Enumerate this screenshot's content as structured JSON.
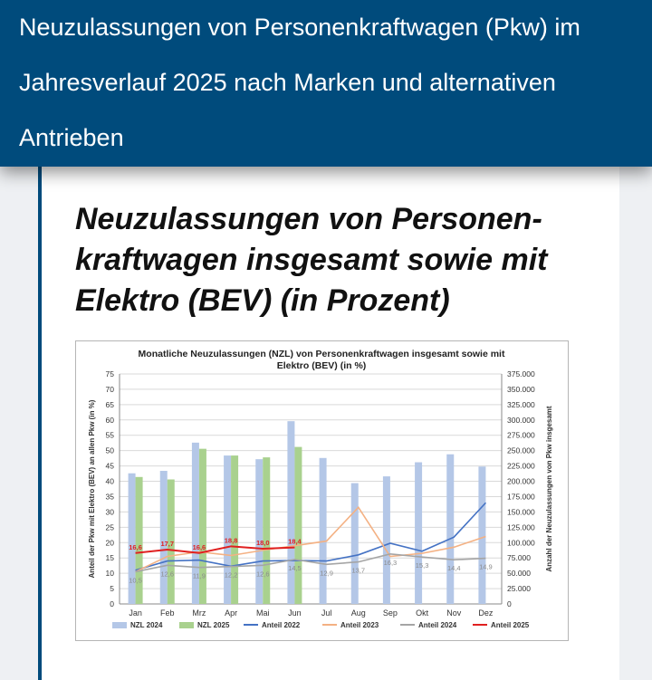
{
  "header": {
    "title": "Neuzulassungen von Personenkraftwagen (Pkw) im Jahresverlauf 2025 nach Marken und alternativen Antrieben"
  },
  "section": {
    "title": "Neuzulassungen von Personen-kraftwagen insgesamt sowie mit Elektro (BEV) (in Prozent)"
  },
  "chart_data": {
    "type": "bar",
    "title": "Monatliche Neuzulassungen  (NZL)  von Personenkraftwagen insgesamt sowie mit Elektro (BEV)  (in %)",
    "categories": [
      "Jan",
      "Feb",
      "Mrz",
      "Apr",
      "Mai",
      "Jun",
      "Jul",
      "Aug",
      "Sep",
      "Okt",
      "Nov",
      "Dez"
    ],
    "ylabel": "Anteil der Pkw mit Elektro (BEV) an allen Pkw (in %)",
    "y2label": "Anzahl der Neuzulassungen von Pkw insgesamt",
    "ylim": [
      0,
      75
    ],
    "y2lim": [
      0,
      375000
    ],
    "yticks": [
      "0",
      "5",
      "10",
      "15",
      "20",
      "25",
      "30",
      "35",
      "40",
      "45",
      "50",
      "55",
      "60",
      "65",
      "70",
      "75"
    ],
    "y2ticks": [
      "0",
      "25.000",
      "50.000",
      "75.000",
      "100.000",
      "125.000",
      "150.000",
      "175.000",
      "200.000",
      "225.000",
      "250.000",
      "275.000",
      "300.000",
      "325.000",
      "350.000",
      "375.000"
    ],
    "grid": true,
    "legend_position": "bottom",
    "bars": [
      {
        "name": "NZL 2024",
        "color": "#b4c7e7",
        "values": [
          213000,
          217000,
          263000,
          242000,
          236000,
          298000,
          238000,
          197000,
          208000,
          231000,
          244000,
          224000
        ]
      },
      {
        "name": "NZL 2025",
        "color": "#a9d18e",
        "values": [
          207000,
          203000,
          253000,
          242000,
          239000,
          256000
        ]
      }
    ],
    "lines": [
      {
        "name": "Anteil 2022",
        "color": "#4472c4",
        "values": [
          11,
          14,
          14.3,
          12.3,
          14,
          14.2,
          14,
          16,
          19.8,
          17.2,
          21.8,
          33
        ]
      },
      {
        "name": "Anteil 2023",
        "color": "#f4b183",
        "values": [
          10.5,
          15.5,
          17,
          15.8,
          17.5,
          19,
          20.5,
          31.5,
          15.5,
          16.5,
          18.5,
          22
        ]
      },
      {
        "name": "Anteil 2024",
        "color": "#a5a5a5",
        "values": [
          10.5,
          12.6,
          11.9,
          12.2,
          12.6,
          14.5,
          12.9,
          13.7,
          16.3,
          15.3,
          14.4,
          14.9
        ]
      },
      {
        "name": "Anteil 2025",
        "color": "#e02020",
        "values": [
          16.6,
          17.7,
          16.6,
          18.8,
          18.0,
          18.4
        ]
      }
    ],
    "labels_2024": [
      "10,5",
      "12,6",
      "11,9",
      "12,2",
      "12,6",
      "14,5",
      "12,9",
      "13,7",
      "16,3",
      "15,3",
      "14,4",
      "14,9"
    ],
    "labels_2025": [
      "16,6",
      "17,7",
      "16,6",
      "18,8",
      "18,0",
      "18,4"
    ]
  }
}
